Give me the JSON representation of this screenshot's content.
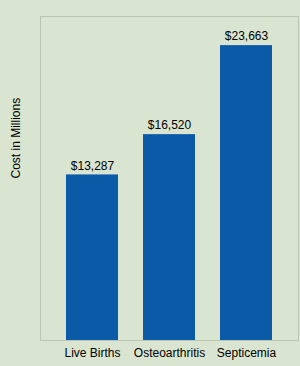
{
  "chart_data": {
    "type": "bar",
    "y_label": "Cost in Millions",
    "categories": [
      "Live Births",
      "Osteoarthritis",
      "Septicemia"
    ],
    "values": [
      13287,
      16520,
      23663
    ],
    "value_labels": [
      "$13,287",
      "$16,520",
      "$23,663"
    ],
    "data_labels": true,
    "color": "#0a5aa8",
    "ylim": [
      0,
      26000
    ],
    "yticks": [],
    "tick_labels": "x",
    "grid": false
  }
}
